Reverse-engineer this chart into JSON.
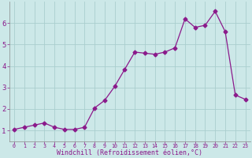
{
  "x": [
    0,
    1,
    2,
    3,
    4,
    5,
    6,
    7,
    8,
    9,
    10,
    11,
    12,
    13,
    14,
    15,
    16,
    17,
    18,
    19,
    20,
    21,
    22,
    23
  ],
  "y": [
    1.05,
    1.15,
    1.25,
    1.35,
    1.15,
    1.05,
    1.05,
    1.15,
    2.05,
    2.4,
    3.05,
    3.85,
    4.65,
    4.6,
    4.55,
    4.65,
    4.85,
    6.2,
    5.8,
    5.9,
    6.55,
    5.6,
    2.65,
    2.45
  ],
  "line_color": "#8b1a8b",
  "marker": "D",
  "marker_size": 2.5,
  "bg_color": "#cce8e8",
  "grid_color": "#aacece",
  "tick_color": "#8b1a8b",
  "xlabel": "Windchill (Refroidissement éolien,°C)",
  "xlabel_color": "#8b1a8b",
  "ylim": [
    0.5,
    7.0
  ],
  "yticks": [
    1,
    2,
    3,
    4,
    5,
    6
  ],
  "xticks": [
    0,
    1,
    2,
    3,
    4,
    5,
    6,
    7,
    8,
    9,
    10,
    11,
    12,
    13,
    14,
    15,
    16,
    17,
    18,
    19,
    20,
    21,
    22,
    23
  ],
  "xtick_labels": [
    "0",
    "1",
    "2",
    "3",
    "4",
    "5",
    "6",
    "7",
    "8",
    "9",
    "10",
    "11",
    "12",
    "13",
    "14",
    "15",
    "16",
    "17",
    "18",
    "19",
    "20",
    "21",
    "22",
    "23"
  ],
  "font": "monospace"
}
